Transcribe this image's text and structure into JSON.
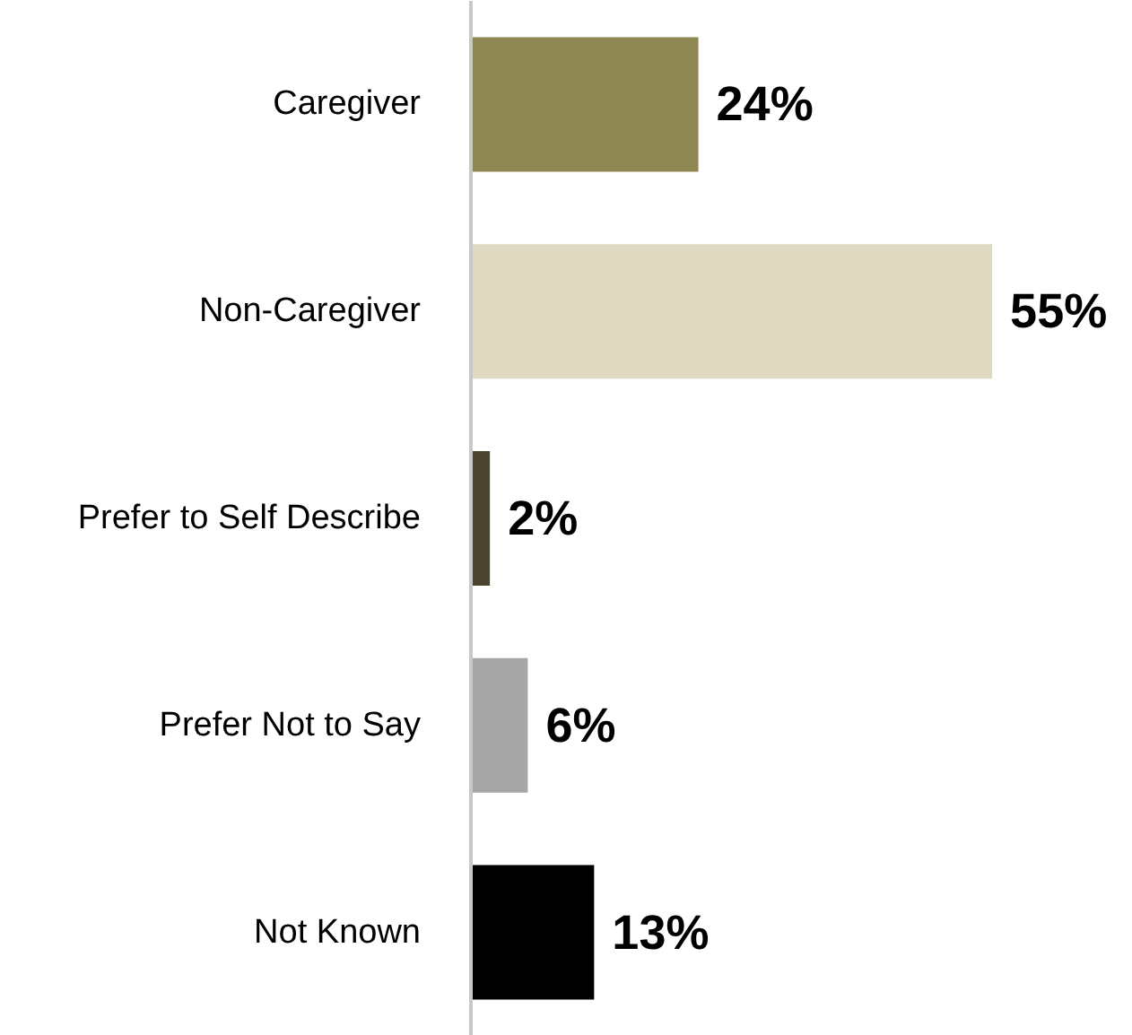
{
  "chart_data": {
    "type": "bar",
    "orientation": "horizontal",
    "categories": [
      "Caregiver",
      "Non-Caregiver",
      "Prefer to Self Describe",
      "Prefer Not to Say",
      "Not Known"
    ],
    "values": [
      24,
      55,
      2,
      6,
      13
    ],
    "colors": [
      "#8f8752",
      "#dfd9c2",
      "#4b4530",
      "#a6a6a6",
      "#000000"
    ],
    "value_labels": [
      "24%",
      "55%",
      "2%",
      "6%",
      "13%"
    ],
    "grid": false
  }
}
